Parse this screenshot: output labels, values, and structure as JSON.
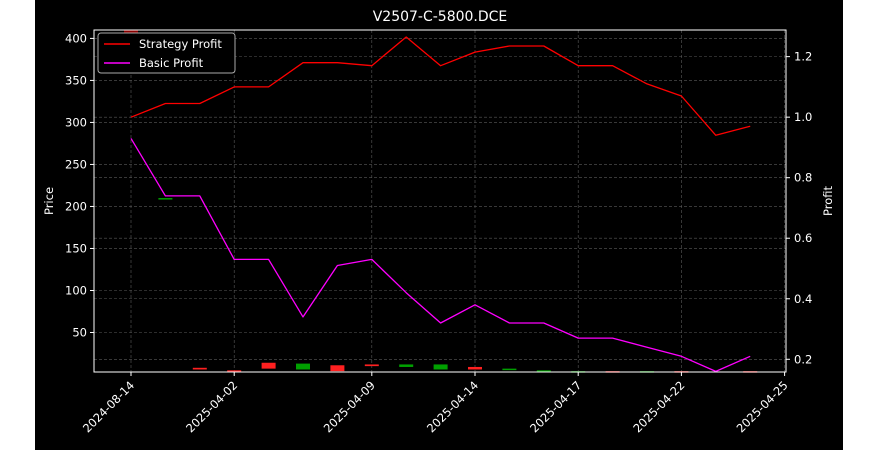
{
  "chart_data": {
    "type": "line",
    "title": "V2507-C-5800.DCE",
    "ylabel": "Price",
    "y2label": "Profit",
    "ylim": [
      3,
      410
    ],
    "y2lim": [
      0.158,
      1.288
    ],
    "grid": true,
    "legend_position": "top-left",
    "background": "#000000",
    "x": [
      "2024-08-14",
      "2025-03-31",
      "2025-04-01",
      "2025-04-02",
      "2025-04-03",
      "2025-04-07",
      "2025-04-08",
      "2025-04-09",
      "2025-04-10",
      "2025-04-11",
      "2025-04-14",
      "2025-04-15",
      "2025-04-16",
      "2025-04-17",
      "2025-04-18",
      "2025-04-21",
      "2025-04-22",
      "2025-04-23",
      "2025-04-24",
      "2025-04-25"
    ],
    "x_ticks": [
      "2024-08-14",
      "2025-04-02",
      "2025-04-09",
      "2025-04-14",
      "2025-04-17",
      "2025-04-22",
      "2025-04-25"
    ],
    "y_ticks": [
      50,
      100,
      150,
      200,
      250,
      300,
      350,
      400
    ],
    "y2_ticks": [
      "0.2",
      "0.4",
      "0.6",
      "0.8",
      "1.0",
      "1.2"
    ],
    "series": [
      {
        "name": "Strategy Profit",
        "axis": "right",
        "color": "#ff0000",
        "values": [
          1.0,
          1.045,
          1.045,
          1.1,
          1.1,
          1.18,
          1.18,
          1.17,
          1.265,
          1.17,
          1.215,
          1.235,
          1.235,
          1.17,
          1.17,
          1.11,
          1.07,
          0.94,
          0.97,
          null
        ]
      },
      {
        "name": "Basic Profit",
        "axis": "right",
        "color": "#ff00ff",
        "values": [
          0.93,
          0.74,
          0.74,
          0.53,
          0.53,
          0.34,
          0.51,
          0.53,
          0.42,
          0.32,
          0.38,
          0.32,
          0.32,
          0.27,
          0.27,
          0.24,
          0.21,
          0.16,
          0.21,
          null
        ]
      }
    ],
    "candles": [
      {
        "x": "2024-08-14",
        "open": 410,
        "close": 390,
        "color": "#8b0000"
      },
      {
        "x": "2025-03-31",
        "open": 210,
        "close": 209,
        "color": "#00a000"
      },
      {
        "x": "2025-04-01",
        "open": 8,
        "close": 6,
        "color": "#ff2020"
      },
      {
        "x": "2025-04-02",
        "open": 5,
        "close": 3,
        "color": "#ff2020"
      },
      {
        "x": "2025-04-03",
        "open": 14,
        "close": 7,
        "color": "#ff2020"
      },
      {
        "x": "2025-04-07",
        "open": 13,
        "close": 6,
        "color": "#00a000"
      },
      {
        "x": "2025-04-08",
        "open": 11,
        "close": 4,
        "color": "#ff2020"
      },
      {
        "x": "2025-04-09",
        "open": 12,
        "close": 10,
        "color": "#ff2020"
      },
      {
        "x": "2025-04-10",
        "open": 12,
        "close": 9,
        "color": "#00a000"
      },
      {
        "x": "2025-04-11",
        "open": 12,
        "close": 6,
        "color": "#00a000"
      },
      {
        "x": "2025-04-14",
        "open": 9,
        "close": 6,
        "color": "#ff2020"
      },
      {
        "x": "2025-04-15",
        "open": 7,
        "close": 6,
        "color": "#00a000"
      },
      {
        "x": "2025-04-16",
        "open": 5,
        "close": 3,
        "color": "#00a000"
      },
      {
        "x": "2025-04-17",
        "open": 4,
        "close": 3,
        "color": "#00a000"
      },
      {
        "x": "2025-04-18",
        "open": 4,
        "close": 3,
        "color": "#ff2020"
      },
      {
        "x": "2025-04-21",
        "open": 4,
        "close": 3,
        "color": "#00a000"
      },
      {
        "x": "2025-04-22",
        "open": 4,
        "close": 3,
        "color": "#ff2020"
      },
      {
        "x": "2025-04-24",
        "open": 4,
        "close": 3,
        "color": "#ff2020"
      }
    ]
  }
}
